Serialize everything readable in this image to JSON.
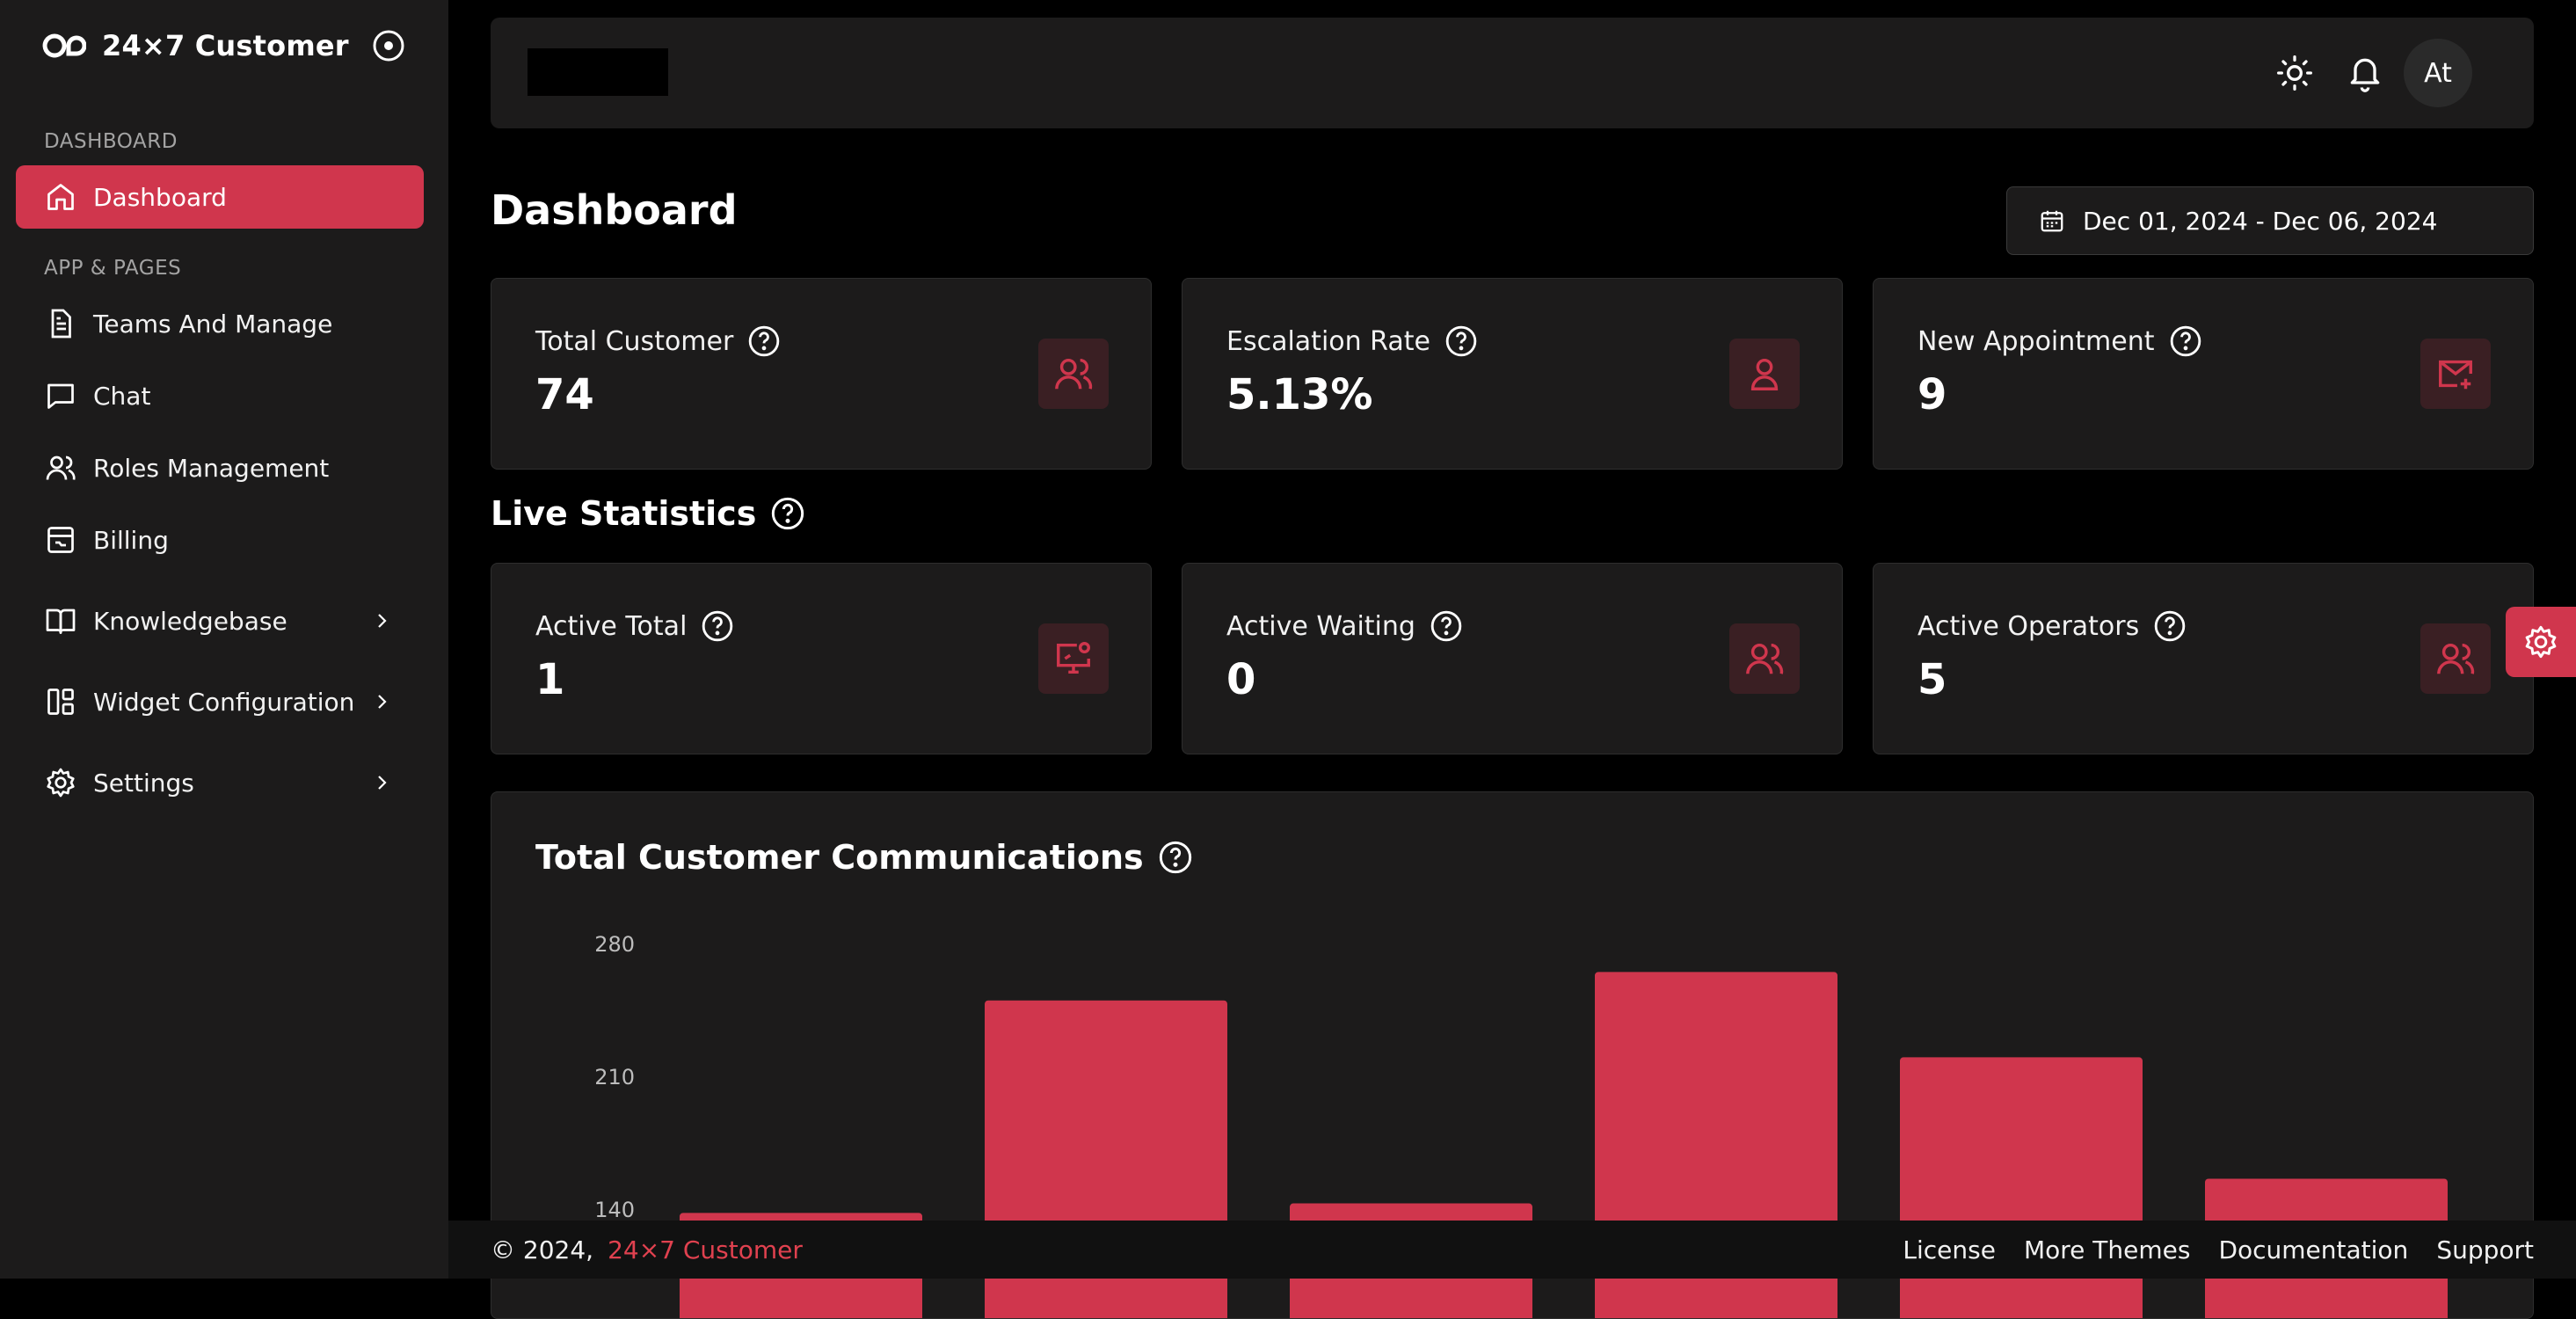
{
  "sidebar": {
    "brand": "24×7 Customer",
    "sections": [
      {
        "label": "DASHBOARD"
      },
      {
        "label": "APP & PAGES"
      }
    ],
    "items": [
      {
        "label": "Dashboard",
        "icon": "home-icon",
        "active": true
      },
      {
        "label": "Teams And Manage",
        "icon": "document-icon"
      },
      {
        "label": "Chat",
        "icon": "chat-icon"
      },
      {
        "label": "Roles Management",
        "icon": "users-icon"
      },
      {
        "label": "Billing",
        "icon": "billing-icon"
      },
      {
        "label": "Knowledgebase",
        "icon": "book-icon",
        "has_submenu": true
      },
      {
        "label": "Widget Configuration",
        "icon": "widget-icon",
        "has_submenu": true
      },
      {
        "label": "Settings",
        "icon": "gear-icon",
        "has_submenu": true
      }
    ]
  },
  "header": {
    "avatar_initials": "At",
    "icons": [
      "sun-icon",
      "bell-icon"
    ]
  },
  "main": {
    "title": "Dashboard",
    "date_range": "Dec 01, 2024 - Dec 06, 2024",
    "summary_cards": [
      {
        "label": "Total Customer",
        "value": "74",
        "icon": "users-icon"
      },
      {
        "label": "Escalation Rate",
        "value": "5.13%",
        "icon": "user-icon"
      },
      {
        "label": "New Appointment",
        "value": "9",
        "icon": "mail-plus-icon"
      }
    ],
    "live_title": "Live Statistics",
    "live_cards": [
      {
        "label": "Active Total",
        "value": "1",
        "icon": "monitor-icon"
      },
      {
        "label": "Active Waiting",
        "value": "0",
        "icon": "users-icon"
      },
      {
        "label": "Active Operators",
        "value": "5",
        "icon": "users-icon"
      }
    ]
  },
  "chart_data": {
    "type": "bar",
    "title": "Total Customer Communications",
    "xlabel": "",
    "ylabel": "",
    "y_ticks": [
      140,
      210,
      280
    ],
    "ylim": [
      0,
      280
    ],
    "values": [
      138,
      250,
      143,
      265,
      220,
      156
    ],
    "color": "#d0364d",
    "grid": false
  },
  "footer": {
    "copyright": "© 2024,",
    "brand": "24×7 Customer",
    "links": [
      "License",
      "More Themes",
      "Documentation",
      "Support"
    ]
  },
  "colors": {
    "accent": "#d0364d",
    "panel": "#1c1b1b",
    "background": "#000000"
  }
}
